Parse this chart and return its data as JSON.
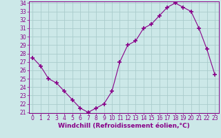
{
  "x": [
    0,
    1,
    2,
    3,
    4,
    5,
    6,
    7,
    8,
    9,
    10,
    11,
    12,
    13,
    14,
    15,
    16,
    17,
    18,
    19,
    20,
    21,
    22,
    23
  ],
  "y": [
    27.5,
    26.5,
    25.0,
    24.5,
    23.5,
    22.5,
    21.5,
    21.0,
    21.5,
    22.0,
    23.5,
    27.0,
    29.0,
    29.5,
    31.0,
    31.5,
    32.5,
    33.5,
    34.0,
    33.5,
    33.0,
    31.0,
    28.5,
    25.5
  ],
  "line_color": "#880088",
  "marker": "+",
  "marker_size": 4,
  "marker_linewidth": 1.2,
  "bg_color": "#cce8e8",
  "grid_color": "#aacccc",
  "xlabel": "Windchill (Refroidissement éolien,°C)",
  "xlabel_color": "#880088",
  "ylim_min": 21,
  "ylim_max": 34,
  "xlim_min": -0.5,
  "xlim_max": 23.5,
  "yticks": [
    21,
    22,
    23,
    24,
    25,
    26,
    27,
    28,
    29,
    30,
    31,
    32,
    33,
    34
  ],
  "xticks": [
    0,
    1,
    2,
    3,
    4,
    5,
    6,
    7,
    8,
    9,
    10,
    11,
    12,
    13,
    14,
    15,
    16,
    17,
    18,
    19,
    20,
    21,
    22,
    23
  ],
  "tick_fontsize": 5.5,
  "xlabel_fontsize": 6.5,
  "linewidth": 0.8
}
